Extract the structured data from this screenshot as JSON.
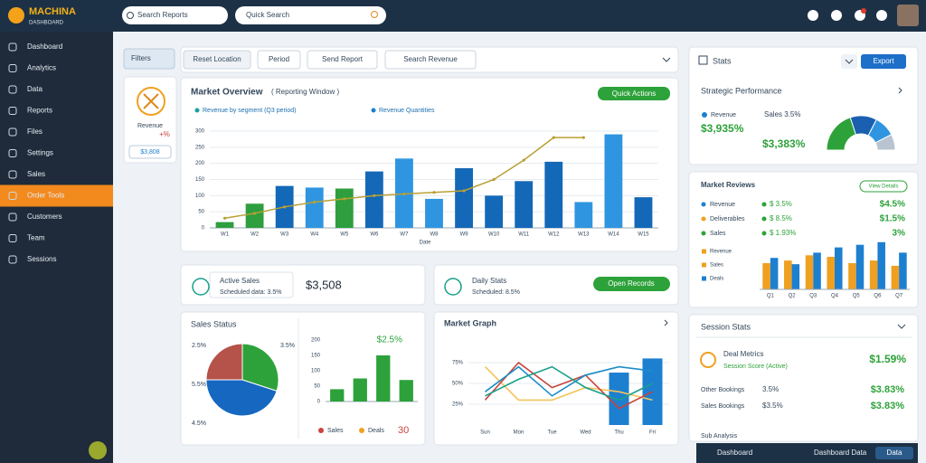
{
  "app": {
    "name": "MACHINA",
    "tagline": "DASHBOARD"
  },
  "search": [
    "Search Reports",
    "Quick Search"
  ],
  "nav": [
    {
      "label": "Dashboard"
    },
    {
      "label": "Analytics"
    },
    {
      "label": "Data"
    },
    {
      "label": "Reports"
    },
    {
      "label": "Files"
    },
    {
      "label": "Settings"
    },
    {
      "label": "Sales"
    },
    {
      "label": "Order Tools",
      "active": true
    },
    {
      "label": "Customers"
    },
    {
      "label": "Team"
    },
    {
      "label": "Sessions"
    }
  ],
  "filters": {
    "tab": "Filters",
    "buttons": [
      "Reset Location",
      "Period",
      "Send Report",
      "Search Revenue"
    ]
  },
  "metric_card": {
    "title": "Revenue",
    "change": "+%",
    "button": "$3,808"
  },
  "main_chart": {
    "type": "bar",
    "title": "Market Overview",
    "subtitle": "( Reporting Window )",
    "legend": [
      "Revenue by segment (Q3 period)",
      "Revenue Quantities"
    ],
    "legend_colors": [
      "#1aa0a0",
      "#1d7fd0"
    ],
    "button": "Quick Actions",
    "xlabel": "Date",
    "categories": [
      "W1",
      "W2",
      "W3",
      "W4",
      "W5",
      "W6",
      "W7",
      "W8",
      "W9",
      "W10",
      "W11",
      "W12",
      "W13",
      "W14",
      "W15"
    ],
    "values": [
      18,
      75,
      130,
      125,
      122,
      175,
      215,
      90,
      185,
      100,
      145,
      205,
      80,
      290,
      95
    ],
    "colors": [
      "#2e9e3e",
      "#2e9e3e",
      "#1468b8",
      "#2f95e0",
      "#2e9e3e",
      "#1468b8",
      "#2f95e0",
      "#2f95e0",
      "#1468b8",
      "#1468b8",
      "#1468b8",
      "#1468b8",
      "#2f95e0",
      "#2f95e0",
      "#1468b8"
    ],
    "line": {
      "color": "#b9a034",
      "values": [
        30,
        45,
        65,
        80,
        90,
        100,
        105,
        110,
        115,
        150,
        210,
        280,
        280,
        null,
        null
      ]
    },
    "ylim": [
      0,
      300
    ],
    "yticks": [
      0,
      50,
      100,
      150,
      200,
      250,
      300
    ],
    "grid": true
  },
  "stats": [
    {
      "title": "Active Sales",
      "detail": "Scheduled data: 3.5%",
      "value": "$3,508"
    },
    {
      "title": "Daily Stats",
      "detail": "Scheduled: 8.5%",
      "button": "Open Records"
    }
  ],
  "pie_card": {
    "title": "Sales Status",
    "pie": {
      "type": "pie",
      "values": [
        30,
        45,
        25
      ],
      "colors": [
        "#2da23a",
        "#1667c0",
        "#b5524a"
      ],
      "annotations": [
        "2.5%",
        "3.5%",
        "5.5%",
        "4.5%"
      ]
    },
    "bars": {
      "type": "bar",
      "values": [
        40,
        75,
        150,
        70
      ],
      "color": "#2da23a",
      "ylim": [
        0,
        200
      ],
      "yticks": [
        0,
        50,
        100,
        150,
        200
      ],
      "note": "$2.5%",
      "legend": [
        "Sales",
        "Deals"
      ],
      "legend_colors": [
        "#c8443c",
        "#f0a020"
      ],
      "total": "30"
    }
  },
  "line_card": {
    "type": "line",
    "title": "Market Graph",
    "categories": [
      "Sun",
      "Mon",
      "Tue",
      "Wed",
      "Thu",
      "Fri"
    ],
    "ylim": [
      0,
      100
    ],
    "yticks": [
      {
        "value": 25,
        "label": "25%"
      },
      {
        "value": 50,
        "label": "50%"
      },
      {
        "value": 75,
        "label": "75%"
      }
    ],
    "series": [
      {
        "color": "#f3c45a",
        "values": [
          70,
          30,
          30,
          45,
          40,
          30
        ]
      },
      {
        "color": "#c8443c",
        "values": [
          30,
          75,
          45,
          60,
          20,
          40
        ]
      },
      {
        "color": "#1d8cc8",
        "values": [
          40,
          70,
          35,
          60,
          70,
          65
        ]
      },
      {
        "color": "#1aa08a",
        "values": [
          35,
          55,
          70,
          45,
          30,
          50
        ]
      }
    ],
    "bars": {
      "color": "#1d7fd0",
      "values": [
        null,
        null,
        null,
        null,
        63,
        80
      ]
    }
  },
  "right_stats": {
    "title": "Stats",
    "button": "Export",
    "subtitle": "Strategic Performance",
    "metrics": [
      {
        "label": "Revenue",
        "value": "$3,935%"
      },
      {
        "label": "Sales 3.5%",
        "value": "$3,383%"
      }
    ],
    "gauge": {
      "type": "pie",
      "values": [
        40,
        25,
        20,
        15
      ],
      "colors": [
        "#2da23a",
        "#1a5fb0",
        "#2f95e0",
        "#b8c4cf"
      ]
    }
  },
  "reviews": {
    "title": "Market Reviews",
    "button": "View Details",
    "rows": [
      {
        "label": "Revenue",
        "detail": "$ 3.5%",
        "value": "$4.5%",
        "color": "#1d7fd0"
      },
      {
        "label": "Deliverables",
        "detail": "$ 8.5%",
        "value": "$1.5%",
        "color": "#f0a020"
      },
      {
        "label": "Sales",
        "detail": "$ 1.93%",
        "value": "3%",
        "color": "#2da23a"
      }
    ],
    "extra_rows": [
      {
        "label": "Revenue",
        "color": "#f0a020"
      },
      {
        "label": "Sales",
        "color": "#f0a020"
      },
      {
        "label": "Deals",
        "color": "#1d7fd0"
      }
    ],
    "chart": {
      "type": "bar",
      "categories": [
        "Q1",
        "Q2",
        "Q3",
        "Q4",
        "Q5",
        "Q6",
        "Q7"
      ],
      "ylim": [
        0,
        100
      ],
      "series": [
        {
          "color": "#f0a020",
          "values": [
            50,
            55,
            65,
            62,
            50,
            55,
            45
          ]
        },
        {
          "color": "#1d7fd0",
          "values": [
            60,
            48,
            70,
            80,
            85,
            90,
            70
          ]
        }
      ]
    }
  },
  "sessions": {
    "title": "Session Stats",
    "main": {
      "title": "Deal Metrics",
      "detail": "Session Score (Active)",
      "value": "$1.59%"
    },
    "rows": [
      {
        "label": "Other Bookings",
        "detail": "3.5%",
        "value": "$3.83%"
      },
      {
        "label": "Sales Bookings",
        "detail": "$3.5%",
        "value": "$3.83%"
      }
    ],
    "footer": "Sub Analysis"
  },
  "bottom_bar": {
    "items": [
      "Dashboard",
      "Dashboard Data"
    ],
    "button": "Data"
  }
}
